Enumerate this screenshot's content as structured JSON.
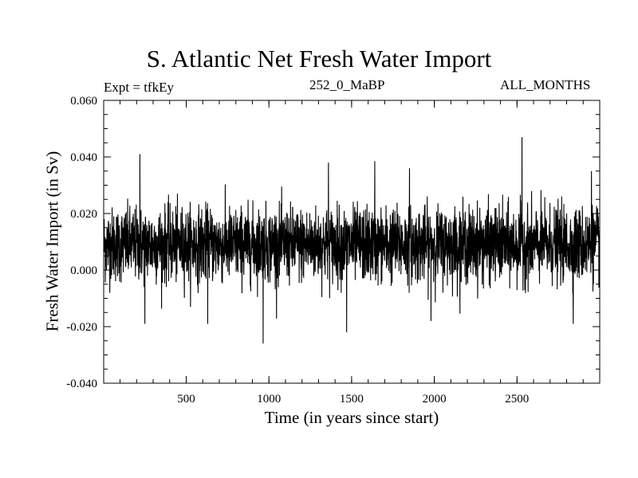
{
  "chart_data": {
    "type": "line",
    "title": "S. Atlantic Net Fresh Water Import",
    "subtitle_left": "Expt = tfkEy",
    "subtitle_center": "252_0_MaBP",
    "subtitle_right": "ALL_MONTHS",
    "xlabel": "Time (in years since start)",
    "ylabel": "Fresh Water Import (in Sv)",
    "xlim": [
      1,
      3000
    ],
    "ylim": [
      -0.04,
      0.06
    ],
    "x_major_ticks": [
      500,
      1000,
      1500,
      2000,
      2500
    ],
    "x_tick_labels": [
      "500",
      "1000",
      "1500",
      "2000",
      "2500"
    ],
    "y_major_ticks": [
      -0.04,
      -0.02,
      0.0,
      0.02,
      0.04,
      0.06
    ],
    "y_tick_labels": [
      "-0.040",
      "-0.020",
      "0.000",
      "0.020",
      "0.040",
      "0.060"
    ],
    "series": [
      {
        "color": "#000000",
        "mean": 0.009,
        "std": 0.0065,
        "n_points": 3000,
        "peaks": [
          [
            220,
            0.041
          ],
          [
            965,
            0.038
          ],
          [
            1640,
            0.0385
          ],
          [
            2530,
            0.047
          ],
          [
            1360,
            0.038
          ],
          [
            1850,
            0.036
          ],
          [
            2950,
            0.035
          ]
        ],
        "troughs": [
          [
            965,
            -0.026
          ],
          [
            1470,
            -0.022
          ],
          [
            250,
            -0.019
          ],
          [
            630,
            -0.019
          ],
          [
            2840,
            -0.019
          ],
          [
            1980,
            -0.018
          ]
        ]
      }
    ]
  }
}
